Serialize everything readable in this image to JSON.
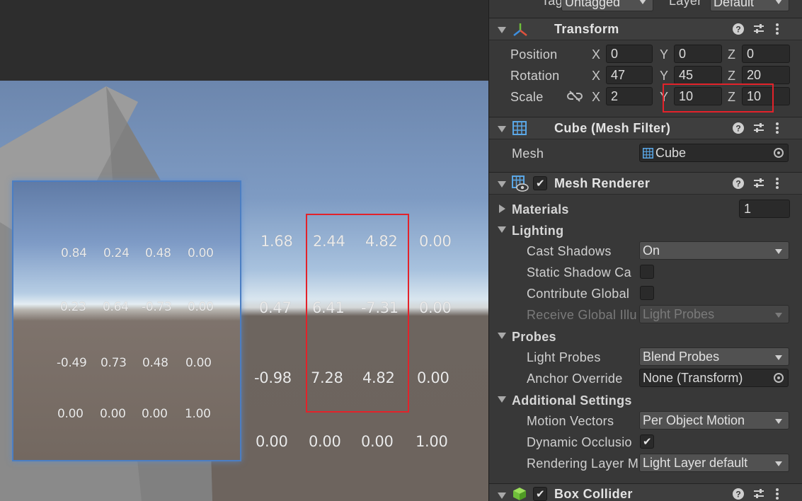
{
  "scene": {
    "small_matrix": [
      [
        "0.84",
        "0.24",
        "0.48",
        "0.00"
      ],
      [
        "0.23",
        "0.64",
        "-0.73",
        "0.00"
      ],
      [
        "-0.49",
        "0.73",
        "0.48",
        "0.00"
      ],
      [
        "0.00",
        "0.00",
        "0.00",
        "1.00"
      ]
    ],
    "big_matrix": [
      [
        "1.68",
        "2.44",
        "4.82",
        "0.00"
      ],
      [
        "0.47",
        "6.41",
        "-7.31",
        "0.00"
      ],
      [
        "-0.98",
        "7.28",
        "4.82",
        "0.00"
      ],
      [
        "0.00",
        "0.00",
        "0.00",
        "1.00"
      ]
    ]
  },
  "top_row": {
    "tag_label": "Tag",
    "tag_value": "Untagged",
    "layer_label": "Layer",
    "layer_value": "Default"
  },
  "transform": {
    "title": "Transform",
    "position_label": "Position",
    "rotation_label": "Rotation",
    "scale_label": "Scale",
    "axis_x": "X",
    "axis_y": "Y",
    "axis_z": "Z",
    "position": {
      "x": "0",
      "y": "0",
      "z": "0"
    },
    "rotation": {
      "x": "47",
      "y": "45",
      "z": "20"
    },
    "scale": {
      "x": "2",
      "y": "10",
      "z": "10"
    }
  },
  "mesh_filter": {
    "title": "Cube (Mesh Filter)",
    "mesh_label": "Mesh",
    "mesh_value": "Cube"
  },
  "mesh_renderer": {
    "title": "Mesh Renderer",
    "materials_label": "Materials",
    "materials_count": "1",
    "lighting_label": "Lighting",
    "cast_shadows_label": "Cast Shadows",
    "cast_shadows_value": "On",
    "static_shadow_label": "Static Shadow Ca",
    "contribute_gi_label": "Contribute Global",
    "receive_gi_label": "Receive Global Illu",
    "receive_gi_value": "Light Probes",
    "probes_label": "Probes",
    "light_probes_label": "Light Probes",
    "light_probes_value": "Blend Probes",
    "anchor_override_label": "Anchor Override",
    "anchor_override_value": "None (Transform)",
    "additional_settings_label": "Additional Settings",
    "motion_vectors_label": "Motion Vectors",
    "motion_vectors_value": "Per Object Motion",
    "dynamic_occlusion_label": "Dynamic Occlusio",
    "rendering_layer_label": "Rendering Layer M",
    "rendering_layer_value": "Light Layer default"
  },
  "box_collider": {
    "title": "Box Collider"
  },
  "colors": {
    "highlight_red": "#e3222a",
    "inspector_bg": "#383838",
    "field_bg": "#2a2a2a"
  }
}
